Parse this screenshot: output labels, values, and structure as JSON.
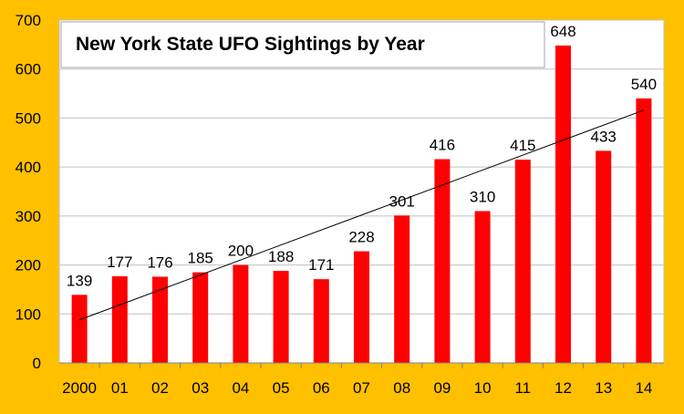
{
  "chart_data": {
    "type": "bar",
    "title": "New York State UFO Sightings by Year",
    "categories": [
      "2000",
      "01",
      "02",
      "03",
      "04",
      "05",
      "06",
      "07",
      "08",
      "09",
      "10",
      "11",
      "12",
      "13",
      "14"
    ],
    "values": [
      139,
      177,
      176,
      185,
      200,
      188,
      171,
      228,
      301,
      416,
      310,
      415,
      648,
      433,
      540
    ],
    "data_labels": [
      "139",
      "177",
      "176",
      "185",
      "200",
      "188",
      "171",
      "228",
      "301",
      "416",
      "310",
      "415",
      "648",
      "433",
      "540"
    ],
    "y_ticks": [
      0,
      100,
      200,
      300,
      400,
      500,
      600,
      700
    ],
    "y_tick_labels": [
      "0",
      "100",
      "200",
      "300",
      "400",
      "500",
      "600",
      "700"
    ],
    "ylim": [
      0,
      700
    ],
    "trendline": {
      "type": "linear",
      "start_value": 88,
      "end_value": 516
    },
    "grid": "horizontal",
    "legend": "none",
    "xlabel": "",
    "ylabel": "",
    "colors": {
      "bar": "#FF0000",
      "background": "#FFC000",
      "plot_area": "#FFFFFF",
      "grid": "#C0C0C0",
      "trendline": "#000000",
      "text": "#000000"
    }
  }
}
